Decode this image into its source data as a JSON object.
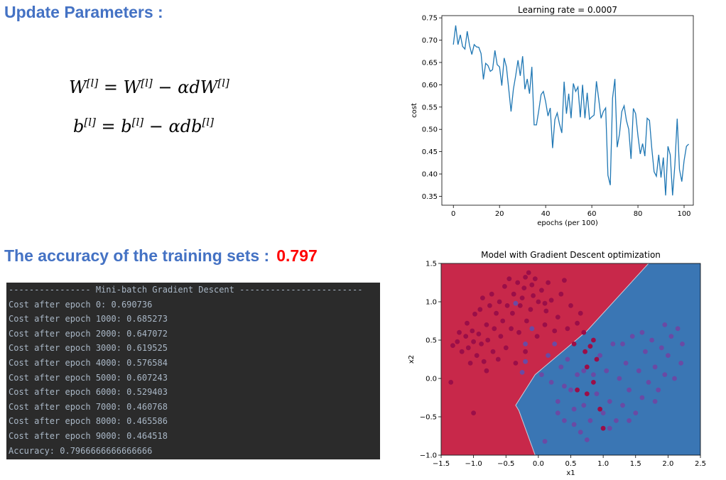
{
  "update_section": {
    "title": "Update Parameters :",
    "eq_w": {
      "lhs": "W",
      "sup": "[l]",
      "mid": " = W",
      "sup2": "[l]",
      "op": " − αdW",
      "sup3": "[l]"
    },
    "eq_b": {
      "lhs": "b",
      "sup": "[l]",
      "mid": " = b",
      "sup2": "[l]",
      "op": " − αdb",
      "sup3": "[l]"
    }
  },
  "accuracy_section": {
    "label": "The accuracy of the training sets :",
    "value": "0.797"
  },
  "terminal": {
    "lines": [
      "---------------- Mini-batch Gradient Descent ------------------------",
      "Cost after epoch 0: 0.690736",
      "Cost after epoch 1000: 0.685273",
      "Cost after epoch 2000: 0.647072",
      "Cost after epoch 3000: 0.619525",
      "Cost after epoch 4000: 0.576584",
      "Cost after epoch 5000: 0.607243",
      "Cost after epoch 6000: 0.529403",
      "Cost after epoch 7000: 0.460768",
      "Cost after epoch 8000: 0.465586",
      "Cost after epoch 9000: 0.464518",
      "Accuracy: 0.7966666666666666"
    ]
  },
  "chart_data": [
    {
      "type": "line",
      "title": "Learning rate = 0.0007",
      "xlabel": "epochs (per 100)",
      "ylabel": "cost",
      "xlim": [
        -5,
        104
      ],
      "ylim": [
        0.33,
        0.755
      ],
      "xticks": [
        0,
        20,
        40,
        60,
        80,
        100
      ],
      "yticks": [
        0.35,
        0.4,
        0.45,
        0.5,
        0.55,
        0.6,
        0.65,
        0.7,
        0.75
      ],
      "grid": false,
      "color": "#1f77b4",
      "x_start": 0,
      "y": [
        0.69,
        0.733,
        0.69,
        0.712,
        0.686,
        0.68,
        0.72,
        0.688,
        0.668,
        0.69,
        0.685,
        0.684,
        0.67,
        0.612,
        0.648,
        0.643,
        0.63,
        0.634,
        0.677,
        0.645,
        0.64,
        0.598,
        0.66,
        0.64,
        0.59,
        0.54,
        0.59,
        0.62,
        0.655,
        0.62,
        0.664,
        0.59,
        0.613,
        0.58,
        0.64,
        0.51,
        0.51,
        0.542,
        0.578,
        0.585,
        0.562,
        0.53,
        0.548,
        0.458,
        0.522,
        0.537,
        0.512,
        0.492,
        0.607,
        0.535,
        0.58,
        0.525,
        0.603,
        0.585,
        0.595,
        0.527,
        0.6,
        0.525,
        0.582,
        0.523,
        0.528,
        0.532,
        0.608,
        0.568,
        0.525,
        0.54,
        0.548,
        0.397,
        0.375,
        0.57,
        0.613,
        0.46,
        0.49,
        0.54,
        0.553,
        0.52,
        0.5,
        0.434,
        0.547,
        0.535,
        0.485,
        0.445,
        0.468,
        0.44,
        0.525,
        0.52,
        0.458,
        0.405,
        0.395,
        0.443,
        0.392,
        0.437,
        0.352,
        0.462,
        0.443,
        0.352,
        0.42,
        0.524,
        0.41,
        0.383,
        0.43,
        0.462,
        0.467
      ]
    },
    {
      "type": "scatter",
      "title": "Model with Gradient Descent optimization",
      "xlabel": "x1",
      "ylabel": "x2",
      "xlim": [
        -1.5,
        2.5
      ],
      "ylim": [
        -1.0,
        1.5
      ],
      "xticks": [
        -1.5,
        -1.0,
        -0.5,
        0.0,
        0.5,
        1.0,
        1.5,
        2.0,
        2.5
      ],
      "yticks": [
        -1.0,
        -0.5,
        0.0,
        0.5,
        1.0,
        1.5
      ],
      "grid": false,
      "decision_boundary": [
        [
          -1.5,
          1.5
        ],
        [
          1.7,
          1.5
        ],
        [
          0.75,
          0.62
        ],
        [
          -0.05,
          0.05
        ],
        [
          -0.35,
          -0.35
        ],
        [
          -0.3,
          -0.42
        ],
        [
          -0.05,
          -1.0
        ],
        [
          -1.5,
          -1.0
        ]
      ],
      "region_colors": {
        "class0": "#c8284a",
        "class1": "#3a76b4"
      },
      "point_colors": {
        "class0": "#9b0e48",
        "class1": "#6a4aa4"
      },
      "series": [
        {
          "class": 0,
          "points": [
            [
              -1.32,
              0.43
            ],
            [
              -1.25,
              0.48
            ],
            [
              -1.22,
              0.6
            ],
            [
              -1.18,
              0.35
            ],
            [
              -1.12,
              0.55
            ],
            [
              -1.1,
              0.72
            ],
            [
              -1.08,
              0.4
            ],
            [
              -1.05,
              0.2
            ],
            [
              -1.02,
              0.62
            ],
            [
              -1.0,
              0.48
            ],
            [
              -0.98,
              0.84
            ],
            [
              -0.95,
              0.3
            ],
            [
              -0.92,
              0.58
            ],
            [
              -0.9,
              0.9
            ],
            [
              -0.88,
              0.45
            ],
            [
              -0.86,
              1.05
            ],
            [
              -0.84,
              0.22
            ],
            [
              -0.8,
              0.7
            ],
            [
              -0.78,
              0.5
            ],
            [
              -0.75,
              0.95
            ],
            [
              -0.72,
              1.1
            ],
            [
              -0.7,
              0.35
            ],
            [
              -0.68,
              0.65
            ],
            [
              -0.65,
              0.85
            ],
            [
              -0.62,
              0.25
            ],
            [
              -0.6,
              1.0
            ],
            [
              -0.58,
              0.55
            ],
            [
              -0.55,
              0.75
            ],
            [
              -0.52,
              1.2
            ],
            [
              -0.5,
              0.4
            ],
            [
              -0.48,
              0.95
            ],
            [
              -0.45,
              1.3
            ],
            [
              -0.42,
              0.65
            ],
            [
              -0.4,
              0.85
            ],
            [
              -0.38,
              1.1
            ],
            [
              -0.35,
              0.2
            ],
            [
              -0.32,
              1.25
            ],
            [
              -0.3,
              0.6
            ],
            [
              -0.28,
              0.95
            ],
            [
              -0.25,
              1.05
            ],
            [
              -0.22,
              1.18
            ],
            [
              -0.2,
              1.32
            ],
            [
              -0.18,
              0.75
            ],
            [
              -0.15,
              1.38
            ],
            [
              -0.12,
              0.9
            ],
            [
              -0.1,
              1.22
            ],
            [
              -0.08,
              1.08
            ],
            [
              -0.05,
              1.3
            ],
            [
              -0.02,
              0.55
            ],
            [
              0.0,
              1.0
            ],
            [
              0.05,
              1.15
            ],
            [
              0.1,
              0.7
            ],
            [
              0.12,
              0.88
            ],
            [
              0.15,
              1.25
            ],
            [
              0.2,
              1.02
            ],
            [
              0.25,
              0.62
            ],
            [
              0.3,
              0.8
            ],
            [
              0.35,
              1.1
            ],
            [
              0.4,
              1.28
            ],
            [
              0.45,
              0.65
            ],
            [
              0.5,
              0.95
            ],
            [
              0.55,
              0.45
            ],
            [
              0.6,
              0.72
            ],
            [
              0.65,
              0.85
            ],
            [
              0.7,
              0.6
            ],
            [
              0.72,
              0.35
            ],
            [
              0.75,
              0.15
            ],
            [
              0.8,
              0.42
            ],
            [
              0.85,
              0.5
            ],
            [
              0.9,
              0.25
            ],
            [
              0.75,
              -0.2
            ],
            [
              0.85,
              -0.05
            ],
            [
              0.95,
              -0.4
            ],
            [
              1.0,
              -0.65
            ],
            [
              0.6,
              -0.15
            ],
            [
              -1.35,
              -0.05
            ],
            [
              -0.8,
              0.1
            ],
            [
              -1.0,
              -0.45
            ],
            [
              -0.2,
              0.35
            ],
            [
              0.1,
              0.98
            ]
          ]
        },
        {
          "class": 1,
          "points": [
            [
              -0.35,
              0.98
            ],
            [
              -0.2,
              0.45
            ],
            [
              -0.1,
              0.65
            ],
            [
              0.05,
              0.05
            ],
            [
              0.15,
              0.3
            ],
            [
              0.2,
              -0.05
            ],
            [
              0.25,
              0.45
            ],
            [
              0.3,
              -0.3
            ],
            [
              0.35,
              0.15
            ],
            [
              0.4,
              -0.55
            ],
            [
              0.45,
              0.25
            ],
            [
              0.5,
              -0.15
            ],
            [
              0.55,
              -0.4
            ],
            [
              0.6,
              0.05
            ],
            [
              0.65,
              -0.7
            ],
            [
              0.7,
              -0.35
            ],
            [
              0.8,
              -0.55
            ],
            [
              0.85,
              0.05
            ],
            [
              0.9,
              -0.2
            ],
            [
              0.95,
              0.3
            ],
            [
              1.0,
              -0.45
            ],
            [
              1.05,
              0.1
            ],
            [
              1.1,
              -0.3
            ],
            [
              1.15,
              0.45
            ],
            [
              1.2,
              -0.55
            ],
            [
              1.25,
              0.0
            ],
            [
              1.3,
              -0.35
            ],
            [
              1.35,
              0.2
            ],
            [
              1.4,
              -0.15
            ],
            [
              1.45,
              0.55
            ],
            [
              1.5,
              -0.45
            ],
            [
              1.55,
              0.1
            ],
            [
              1.6,
              -0.25
            ],
            [
              1.65,
              0.35
            ],
            [
              1.7,
              -0.05
            ],
            [
              1.75,
              0.5
            ],
            [
              1.8,
              0.15
            ],
            [
              1.85,
              -0.15
            ],
            [
              1.9,
              0.4
            ],
            [
              1.95,
              0.05
            ],
            [
              2.0,
              0.3
            ],
            [
              2.05,
              0.55
            ],
            [
              2.1,
              0.0
            ],
            [
              2.15,
              0.65
            ],
            [
              2.2,
              0.2
            ],
            [
              2.22,
              0.45
            ],
            [
              1.95,
              0.7
            ],
            [
              1.6,
              0.6
            ],
            [
              1.3,
              0.45
            ],
            [
              1.1,
              -0.65
            ],
            [
              0.75,
              -0.8
            ],
            [
              0.55,
              -0.6
            ],
            [
              0.3,
              -0.45
            ],
            [
              0.4,
              -0.1
            ],
            [
              1.4,
              -0.55
            ],
            [
              1.8,
              -0.3
            ],
            [
              0.1,
              -0.82
            ],
            [
              -0.2,
              0.22
            ],
            [
              -0.25,
              0.08
            ],
            [
              0.7,
              0.1
            ]
          ]
        }
      ]
    }
  ]
}
